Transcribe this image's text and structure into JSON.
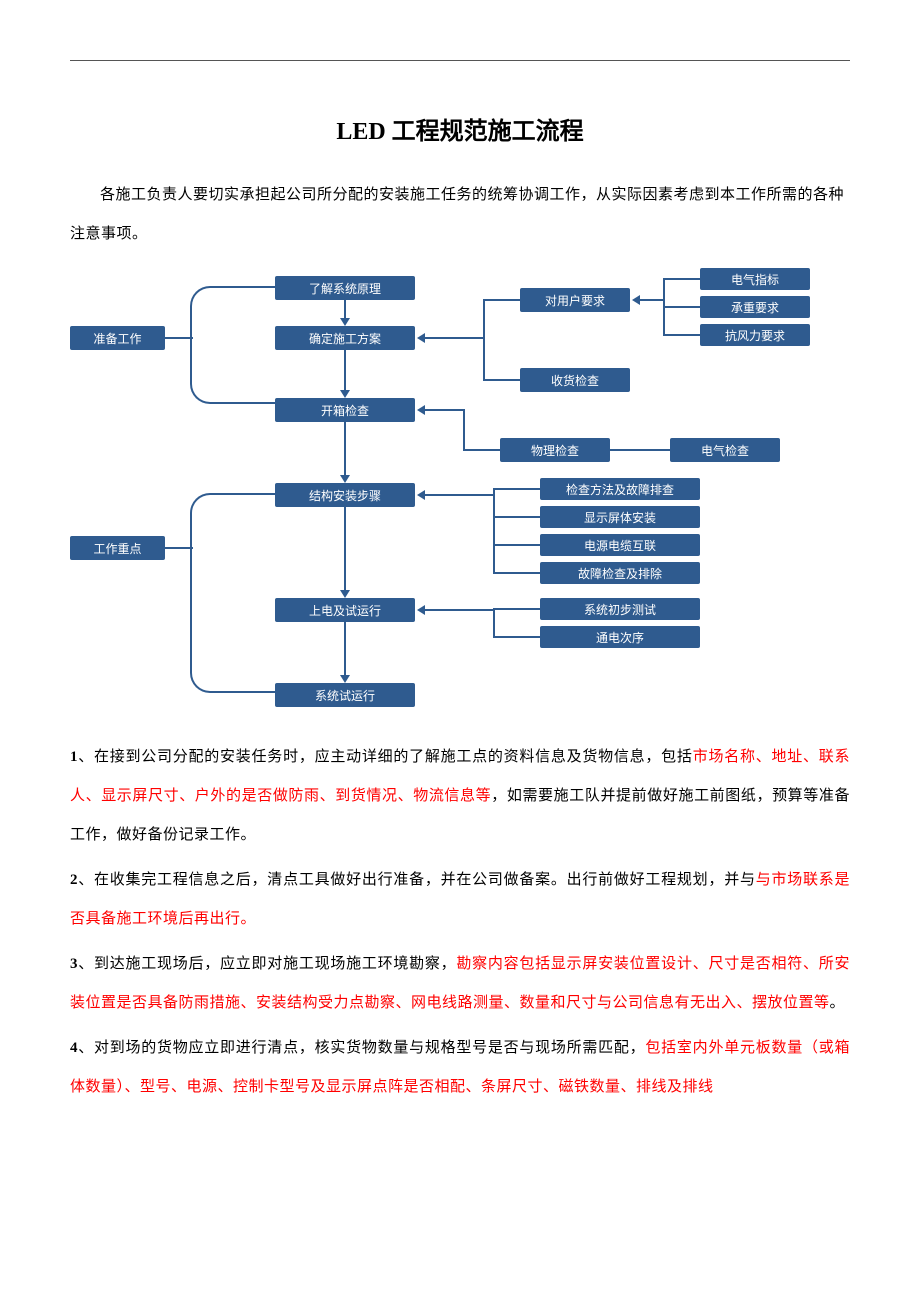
{
  "title": "LED 工程规范施工流程",
  "intro": "各施工负责人要切实承担起公司所分配的安装施工任务的统筹协调工作，从实际因素考虑到本工作所需的各种注意事项。",
  "flowchart": {
    "node_bg": "#2f5b8f",
    "node_text_color": "#ffffff",
    "line_color": "#2f5b8f",
    "nodes": {
      "prep": "准备工作",
      "n1": "了解系统原理",
      "n2": "确定施工方案",
      "n3": "开箱检查",
      "n4": "结构安装步骤",
      "n5": "上电及试运行",
      "n6": "系统试运行",
      "req": "对用户要求",
      "e1": "电气指标",
      "e2": "承重要求",
      "e3": "抗风力要求",
      "recv": "收货检查",
      "phy": "物理检查",
      "elec": "电气检查",
      "m1": "检查方法及故障排查",
      "m2": "显示屏体安装",
      "m3": "电源电缆互联",
      "m4": "故障检查及排除",
      "m5": "系统初步测试",
      "m6": "通电次序",
      "focus": "工作重点"
    }
  },
  "paragraphs": [
    {
      "num": "1",
      "segments": [
        {
          "t": "、在接到公司分配的安装任务时，应主动详细的了解施工点的资料信息及货物信息，包括",
          "red": false
        },
        {
          "t": "市场名称、地址、联系人、显示屏尺寸、户外的是否做防雨、到货情况、物流信息等",
          "red": true
        },
        {
          "t": "，如需要施工队并提前做好施工前图纸，预算等准备工作，做好备份记录工作。",
          "red": false
        }
      ]
    },
    {
      "num": "2",
      "segments": [
        {
          "t": "、在收集完工程信息之后，清点工具做好出行准备，并在公司做备案。出行前做好工程规划，并与",
          "red": false
        },
        {
          "t": "与市场联系是否具备施工环境后再出行。",
          "red": true
        }
      ]
    },
    {
      "num": "3",
      "segments": [
        {
          "t": "、到达施工现场后，应立即对施工现场施工环境勘察，",
          "red": false
        },
        {
          "t": "勘察内容包括显示屏安装位置设计、尺寸是否相符、所安装位置是否具备防雨措施、安装结构受力点勘察、网电线路测量、数量和尺寸与公司信息有无出入、摆放位置等",
          "red": true
        },
        {
          "t": "。",
          "red": false
        }
      ]
    },
    {
      "num": "4",
      "segments": [
        {
          "t": "、对到场的货物应立即进行清点，核实货物数量与规格型号是否与现场所需匹配，",
          "red": false
        },
        {
          "t": "包括室内外单元板数量（或箱体数量）、型号、电源、控制卡型号及显示屏点阵是否相配、条屏尺寸、磁铁数量、排线及排线",
          "red": true
        }
      ]
    }
  ]
}
